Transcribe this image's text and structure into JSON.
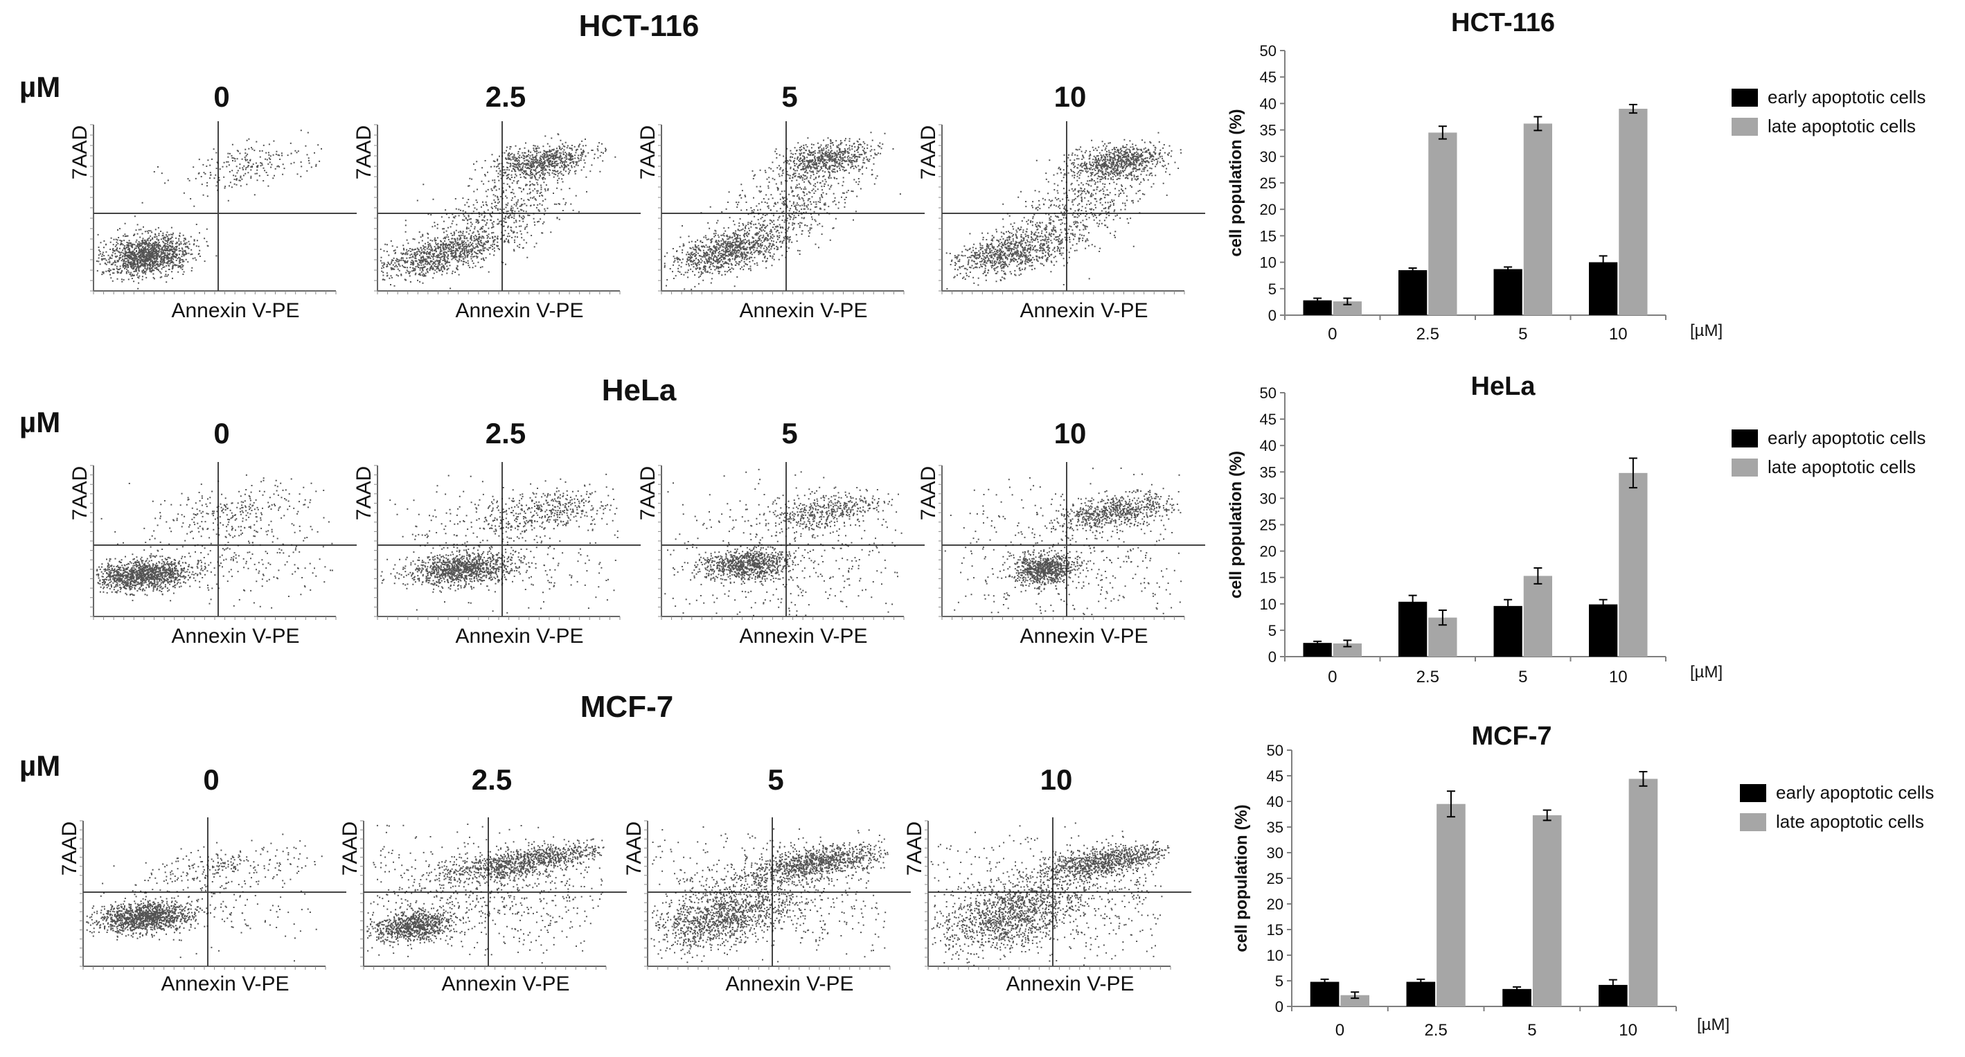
{
  "colors": {
    "early": "#000000",
    "late": "#a6a6a6",
    "axis": "#7f7f7f",
    "dots": "#1a1a1a"
  },
  "chart_data": [
    {
      "type": "scatter",
      "panel": "flow-cytometry",
      "cell_line": "HCT-116",
      "unit_label": "µM",
      "concentrations": [
        "0",
        "2.5",
        "5",
        "10"
      ],
      "xlabel": "Annexin V-PE",
      "ylabel": "7AAD",
      "populations_note": "dot-plot density clusters (qualitative)"
    },
    {
      "type": "bar",
      "panel": "apoptosis-quantification",
      "title": "HCT-116",
      "categories": [
        "0",
        "2.5",
        "5",
        "10"
      ],
      "x_unit_label": "[µM]",
      "ylabel": "cell population (%)",
      "ylim": [
        0,
        50
      ],
      "yticks": [
        0,
        5,
        10,
        15,
        20,
        25,
        30,
        35,
        40,
        45,
        50
      ],
      "legend_position": "right",
      "series": [
        {
          "name": "early apoptotic cells",
          "color": "#000000",
          "values": [
            2.8,
            8.5,
            8.7,
            10.0
          ],
          "errors": [
            0.4,
            0.4,
            0.4,
            1.2
          ]
        },
        {
          "name": "late apoptotic cells",
          "color": "#a6a6a6",
          "values": [
            2.6,
            34.5,
            36.2,
            39.0
          ],
          "errors": [
            0.6,
            1.2,
            1.3,
            0.8
          ]
        }
      ]
    },
    {
      "type": "scatter",
      "panel": "flow-cytometry",
      "cell_line": "HeLa",
      "unit_label": "µM",
      "concentrations": [
        "0",
        "2.5",
        "5",
        "10"
      ],
      "xlabel": "Annexin V-PE",
      "ylabel": "7AAD",
      "populations_note": "dot-plot density clusters (qualitative)"
    },
    {
      "type": "bar",
      "panel": "apoptosis-quantification",
      "title": "HeLa",
      "categories": [
        "0",
        "2.5",
        "5",
        "10"
      ],
      "x_unit_label": "[µM]",
      "ylabel": "cell population (%)",
      "ylim": [
        0,
        50
      ],
      "yticks": [
        0,
        5,
        10,
        15,
        20,
        25,
        30,
        35,
        40,
        45,
        50
      ],
      "legend_position": "right",
      "series": [
        {
          "name": "early apoptotic cells",
          "color": "#000000",
          "values": [
            2.6,
            10.4,
            9.6,
            9.9
          ],
          "errors": [
            0.3,
            1.2,
            1.2,
            0.9
          ]
        },
        {
          "name": "late apoptotic cells",
          "color": "#a6a6a6",
          "values": [
            2.5,
            7.4,
            15.3,
            34.8
          ],
          "errors": [
            0.6,
            1.4,
            1.5,
            2.8
          ]
        }
      ]
    },
    {
      "type": "scatter",
      "panel": "flow-cytometry",
      "cell_line": "MCF-7",
      "unit_label": "µM",
      "concentrations": [
        "0",
        "2.5",
        "5",
        "10"
      ],
      "xlabel": "Annexin V-PE",
      "ylabel": "7AAD",
      "populations_note": "dot-plot density clusters (qualitative)"
    },
    {
      "type": "bar",
      "panel": "apoptosis-quantification",
      "title": "MCF-7",
      "categories": [
        "0",
        "2.5",
        "5",
        "10"
      ],
      "x_unit_label": "[µM]",
      "ylabel": "cell population (%)",
      "ylim": [
        0,
        50
      ],
      "yticks": [
        0,
        5,
        10,
        15,
        20,
        25,
        30,
        35,
        40,
        45,
        50
      ],
      "legend_position": "right",
      "series": [
        {
          "name": "early apoptotic cells",
          "color": "#000000",
          "values": [
            4.8,
            4.8,
            3.4,
            4.2
          ],
          "errors": [
            0.5,
            0.5,
            0.4,
            1.0
          ]
        },
        {
          "name": "late apoptotic cells",
          "color": "#a6a6a6",
          "values": [
            2.2,
            39.5,
            37.3,
            44.4
          ],
          "errors": [
            0.6,
            2.5,
            1.0,
            1.4
          ]
        }
      ]
    }
  ]
}
